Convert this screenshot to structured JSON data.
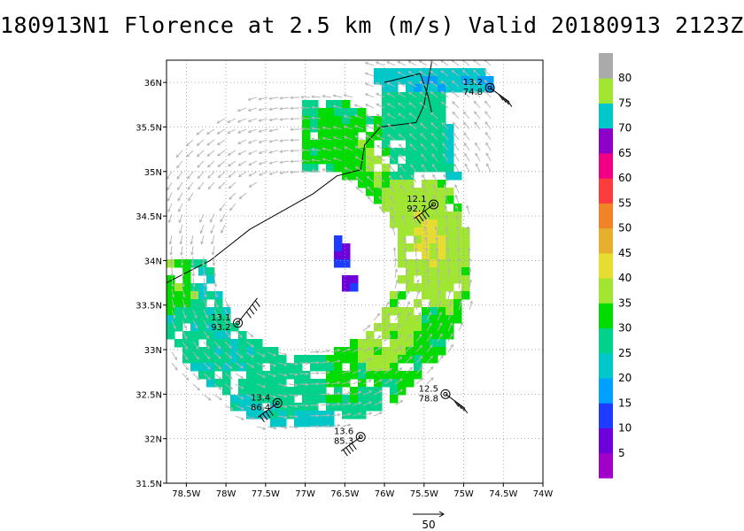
{
  "title": "180913N1 Florence at 2.5 km (m/s) Valid 20180913 2123Z",
  "chart_data": {
    "type": "heatmap",
    "xlim": [
      -78.75,
      -74.0
    ],
    "ylim": [
      31.5,
      36.25
    ],
    "x_ticks": [
      -78.5,
      -78,
      -77.5,
      -77,
      -76.5,
      -76,
      -75.5,
      -75,
      -74.5,
      -74
    ],
    "x_tick_labels": [
      "78.5W",
      "78W",
      "77.5W",
      "77W",
      "76.5W",
      "76W",
      "75.5W",
      "75W",
      "74.5W",
      "74W"
    ],
    "y_ticks": [
      31.5,
      32,
      32.5,
      33,
      33.5,
      34,
      34.5,
      35,
      35.5,
      36
    ],
    "y_tick_labels": [
      "31.5N",
      "32N",
      "32.5N",
      "33N",
      "33.5N",
      "34N",
      "34.5N",
      "35N",
      "35.5N",
      "36N"
    ],
    "grid": true,
    "colorbar": {
      "levels": [
        5,
        10,
        15,
        20,
        25,
        30,
        35,
        40,
        45,
        50,
        55,
        60,
        65,
        70,
        75,
        80
      ],
      "colors": [
        "#a000c8",
        "#6e00dc",
        "#1e3cff",
        "#00a0ff",
        "#00c8c8",
        "#00d28c",
        "#00dc00",
        "#a0e632",
        "#e6dc32",
        "#e6af2d",
        "#f08228",
        "#fa3c3c",
        "#f00082",
        "#8c00c8",
        "#00c8c8",
        "#a0e632",
        "#aaaaaa"
      ]
    },
    "annotations": [
      {
        "lon": -74.67,
        "lat": 35.94,
        "top": "13.2",
        "bottom": "74.8"
      },
      {
        "lon": -75.38,
        "lat": 34.63,
        "top": "12.1",
        "bottom": "92.7"
      },
      {
        "lon": -77.85,
        "lat": 33.3,
        "top": "13.1",
        "bottom": "93.2"
      },
      {
        "lon": -77.35,
        "lat": 32.4,
        "top": "13.4",
        "bottom": "86.4"
      },
      {
        "lon": -75.23,
        "lat": 32.5,
        "top": "12.5",
        "bottom": "78.8"
      },
      {
        "lon": -76.3,
        "lat": 32.02,
        "top": "13.6",
        "bottom": "85.3"
      }
    ],
    "reference_vector": "50"
  }
}
